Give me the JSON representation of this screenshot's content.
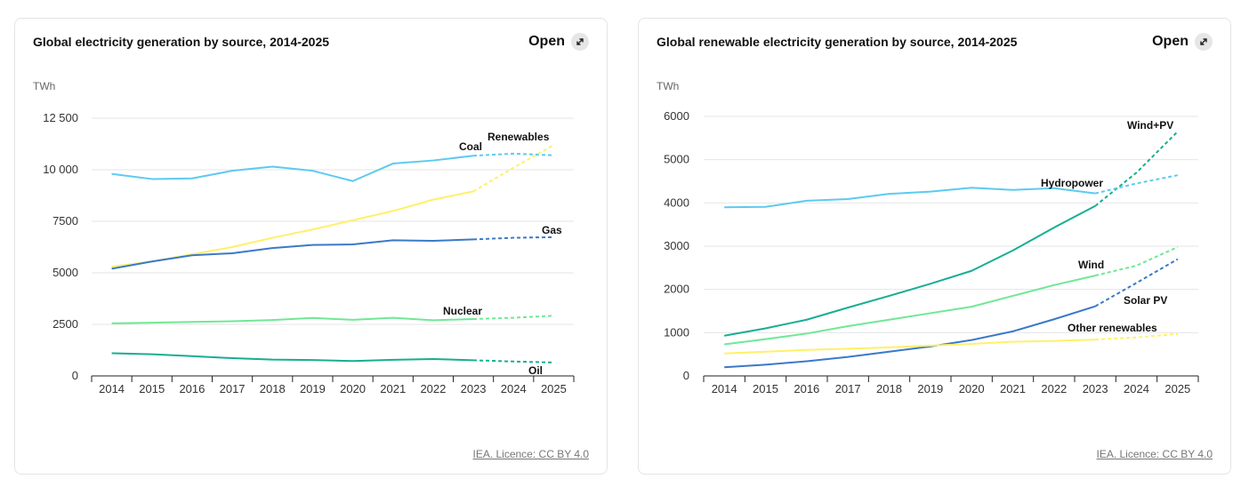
{
  "cards": [
    {
      "title": "Global electricity generation by source, 2014-2025",
      "open_label": "Open",
      "credit": "IEA. Licence: CC BY 4.0"
    },
    {
      "title": "Global renewable electricity generation by source, 2014-2025",
      "open_label": "Open",
      "credit": "IEA. Licence: CC BY 4.0"
    }
  ],
  "chart_data": [
    {
      "type": "line",
      "title": "Global electricity generation by source, 2014-2025",
      "ylabel": "TWh",
      "ylim": [
        0,
        12500
      ],
      "yticks": [
        0,
        2500,
        5000,
        7500,
        10000,
        12500
      ],
      "ytick_labels": [
        "0",
        "2500",
        "5000",
        "7500",
        "10 000",
        "12 500"
      ],
      "x": [
        "2014",
        "2015",
        "2016",
        "2017",
        "2018",
        "2019",
        "2020",
        "2021",
        "2022",
        "2023",
        "2024",
        "2025"
      ],
      "grid": true,
      "note": "Solid lines 2014-2023, dashed lines 2023-2025",
      "series": [
        {
          "name": "Coal",
          "color": "#5ccaf0",
          "values": [
            9800,
            9550,
            9580,
            9950,
            10150,
            9950,
            9450,
            10300,
            10450,
            10680,
            10780,
            10700
          ]
        },
        {
          "name": "Renewables",
          "color": "#fff06a",
          "values": [
            5300,
            5550,
            5900,
            6250,
            6700,
            7100,
            7550,
            8000,
            8550,
            8950,
            10100,
            11200
          ]
        },
        {
          "name": "Gas",
          "color": "#3a79c9",
          "values": [
            5200,
            5550,
            5850,
            5950,
            6200,
            6350,
            6380,
            6580,
            6550,
            6620,
            6700,
            6730
          ]
        },
        {
          "name": "Nuclear",
          "color": "#6fe895",
          "values": [
            2550,
            2580,
            2620,
            2650,
            2710,
            2810,
            2720,
            2820,
            2700,
            2760,
            2820,
            2920
          ]
        },
        {
          "name": "Oil",
          "color": "#17ae92",
          "values": [
            1100,
            1050,
            960,
            860,
            790,
            770,
            720,
            780,
            820,
            760,
            700,
            650
          ]
        }
      ]
    },
    {
      "type": "line",
      "title": "Global renewable electricity generation by source, 2014-2025",
      "ylabel": "TWh",
      "ylim": [
        0,
        6000
      ],
      "yticks": [
        0,
        1000,
        2000,
        3000,
        4000,
        5000,
        6000
      ],
      "ytick_labels": [
        "0",
        "1000",
        "2000",
        "3000",
        "4000",
        "5000",
        "6000"
      ],
      "x": [
        "2014",
        "2015",
        "2016",
        "2017",
        "2018",
        "2019",
        "2020",
        "2021",
        "2022",
        "2023",
        "2024",
        "2025"
      ],
      "grid": true,
      "note": "Solid lines 2014-2023, dashed lines 2023-2025",
      "series": [
        {
          "name": "Wind+PV",
          "color": "#17ae92",
          "values": [
            930,
            1100,
            1300,
            1580,
            1850,
            2130,
            2430,
            2900,
            3430,
            3930,
            4700,
            5650
          ]
        },
        {
          "name": "Hydropower",
          "color": "#5ccaf0",
          "values": [
            3900,
            3910,
            4050,
            4090,
            4210,
            4260,
            4350,
            4300,
            4340,
            4220,
            4450,
            4640
          ]
        },
        {
          "name": "Wind",
          "color": "#6fe895",
          "values": [
            730,
            850,
            980,
            1150,
            1300,
            1450,
            1600,
            1850,
            2100,
            2320,
            2550,
            2980
          ]
        },
        {
          "name": "Solar PV",
          "color": "#3a79c9",
          "values": [
            200,
            260,
            340,
            440,
            560,
            680,
            830,
            1030,
            1310,
            1610,
            2150,
            2700
          ]
        },
        {
          "name": "Other renewables",
          "color": "#fff06a",
          "values": [
            520,
            560,
            600,
            630,
            660,
            700,
            740,
            790,
            810,
            840,
            890,
            970
          ]
        }
      ]
    }
  ]
}
